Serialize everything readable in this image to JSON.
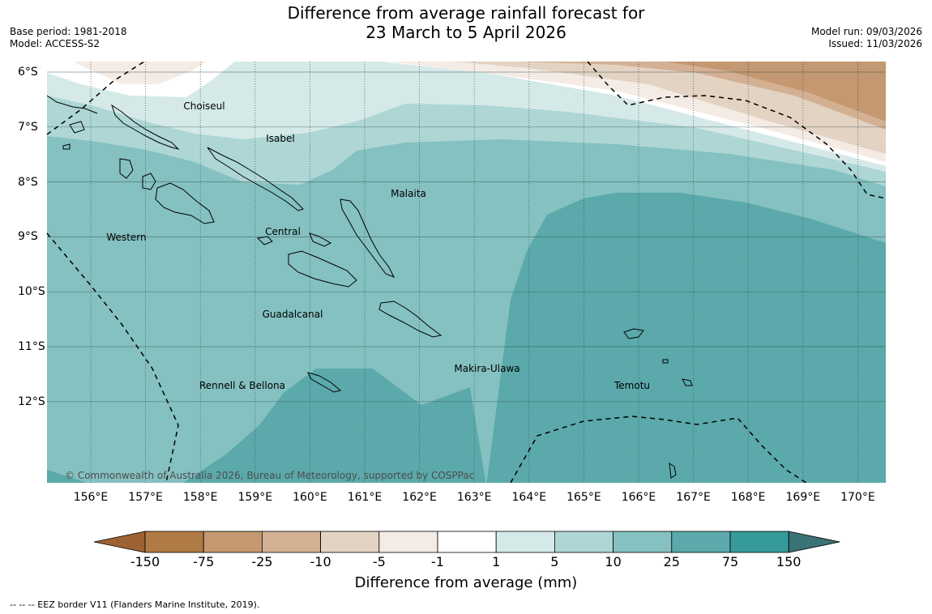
{
  "title": {
    "line1": "Difference from average rainfall forecast for",
    "line2": "23 March to 5 April 2026"
  },
  "meta": {
    "base_period": "Base period: 1981-2018",
    "model": "Model: ACCESS-S2",
    "model_run": "Model run: 09/03/2026",
    "issued": "Issued: 11/03/2026"
  },
  "axes": {
    "lon_labels": [
      "156°E",
      "157°E",
      "158°E",
      "159°E",
      "160°E",
      "161°E",
      "162°E",
      "163°E",
      "164°E",
      "165°E",
      "166°E",
      "167°E",
      "168°E",
      "169°E",
      "170°E"
    ],
    "lat_labels": [
      "6°S",
      "7°S",
      "8°S",
      "9°S",
      "10°S",
      "11°S",
      "12°S"
    ]
  },
  "regions": [
    "Choiseul",
    "Isabel",
    "Malaita",
    "Western",
    "Central",
    "Guadalcanal",
    "Makira-Ulawa",
    "Rennell & Bellona",
    "Temotu"
  ],
  "colorbar": {
    "labels": [
      "-150",
      "-75",
      "-25",
      "-10",
      "-5",
      "-1",
      "1",
      "5",
      "10",
      "25",
      "75",
      "150"
    ],
    "colors": [
      "#9c6233",
      "#af7a43",
      "#c49870",
      "#d4b093",
      "#e3d3c2",
      "#f4ebe5",
      "#ffffff",
      "#d5e9e8",
      "#add6d5",
      "#84c1c0",
      "#5ba9aa",
      "#36999a",
      "#3a7375"
    ],
    "title": "Difference from average (mm)"
  },
  "copyright": "© Commonwealth of Australia 2026, Bureau of Meteorology, supported by COSPPac",
  "footnote": "--  --  -- EEZ border V11 (Flanders Marine Institute, 2019)."
}
